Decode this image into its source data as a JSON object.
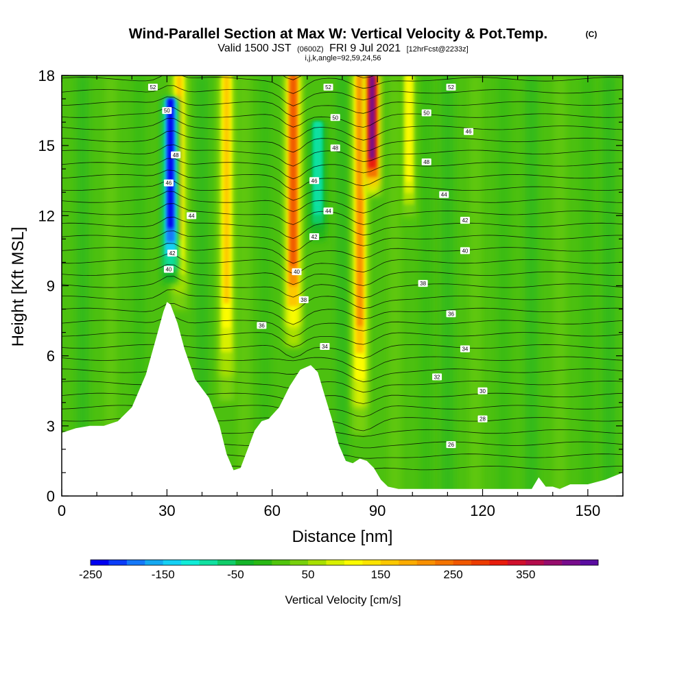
{
  "title": {
    "main": "Wind-Parallel Section at Max W: Vertical Velocity & Pot.Temp.",
    "copyright": "(C)",
    "valid_prefix": "Valid 1500 JST",
    "valid_z": "(0600Z)",
    "valid_date": "FRI 9 Jul 2021",
    "forecast": "[12hrFcst@2233z]",
    "indices": "i,j,k,angle=92,59,24,56"
  },
  "chart_data": {
    "type": "heatmap",
    "xlabel": "Distance [nm]",
    "ylabel": "Height [Kft MSL]",
    "xlim": [
      0,
      160
    ],
    "ylim": [
      0,
      18
    ],
    "x_ticks": [
      0,
      30,
      60,
      90,
      120,
      150
    ],
    "y_ticks": [
      0,
      3,
      6,
      9,
      12,
      15,
      18
    ],
    "terrain": {
      "x": [
        0,
        4,
        8,
        12,
        16,
        20,
        24,
        27,
        29,
        30,
        31,
        33,
        35,
        38,
        42,
        45,
        47,
        49,
        51,
        53,
        55,
        57,
        59,
        62,
        65,
        68,
        71,
        73,
        75,
        77,
        79,
        81,
        83,
        85,
        87,
        89,
        91,
        93,
        96,
        100,
        105,
        110,
        115,
        120,
        125,
        130,
        134,
        136,
        138,
        140,
        142,
        145,
        150,
        155,
        160
      ],
      "y_kft": [
        2.7,
        2.9,
        3.0,
        3.0,
        3.2,
        3.8,
        5.2,
        6.8,
        7.9,
        8.3,
        8.2,
        7.4,
        6.3,
        5.0,
        4.2,
        3.0,
        1.8,
        1.1,
        1.2,
        2.0,
        2.8,
        3.2,
        3.3,
        3.8,
        4.7,
        5.4,
        5.6,
        5.3,
        4.3,
        3.3,
        2.2,
        1.5,
        1.4,
        1.6,
        1.5,
        1.2,
        0.7,
        0.4,
        0.3,
        0.3,
        0.3,
        0.3,
        0.3,
        0.3,
        0.3,
        0.3,
        0.3,
        0.8,
        0.4,
        0.4,
        0.3,
        0.5,
        0.5,
        0.7,
        1.0
      ]
    },
    "updrafts": [
      {
        "x": 33.5,
        "y_base": 7.2,
        "y_top": 18,
        "peak_cm_s": 150
      },
      {
        "x": 47.0,
        "y_base": 3.0,
        "y_top": 18,
        "peak_cm_s": 150
      },
      {
        "x": 66.0,
        "y_base": 5.5,
        "y_top": 18,
        "peak_cm_s": 250
      },
      {
        "x": 85.0,
        "y_base": 1.5,
        "y_top": 18,
        "peak_cm_s": 200
      },
      {
        "x": 88.5,
        "y_base": 12.5,
        "y_top": 18,
        "peak_cm_s": 400
      },
      {
        "x": 99.0,
        "y_base": 11.0,
        "y_top": 18,
        "peak_cm_s": 100
      }
    ],
    "downdrafts": [
      {
        "x": 31.0,
        "y_base": 8.5,
        "y_top": 17.0,
        "peak_cm_s": -250
      },
      {
        "x": 73.0,
        "y_base": 10.5,
        "y_top": 16.0,
        "peak_cm_s": -100
      }
    ],
    "contour_labels": [
      {
        "text": "52",
        "x": 26,
        "y": 17.5
      },
      {
        "text": "50",
        "x": 30,
        "y": 16.5
      },
      {
        "text": "48",
        "x": 32.5,
        "y": 14.6
      },
      {
        "text": "46",
        "x": 30.5,
        "y": 13.4
      },
      {
        "text": "44",
        "x": 37,
        "y": 12.0
      },
      {
        "text": "42",
        "x": 31.5,
        "y": 10.4
      },
      {
        "text": "40",
        "x": 30.5,
        "y": 9.7
      },
      {
        "text": "36",
        "x": 57,
        "y": 7.3
      },
      {
        "text": "52",
        "x": 76,
        "y": 17.5
      },
      {
        "text": "50",
        "x": 78,
        "y": 16.2
      },
      {
        "text": "48",
        "x": 78,
        "y": 14.9
      },
      {
        "text": "46",
        "x": 72,
        "y": 13.5
      },
      {
        "text": "44",
        "x": 76,
        "y": 12.2
      },
      {
        "text": "42",
        "x": 72,
        "y": 11.1
      },
      {
        "text": "40",
        "x": 67,
        "y": 9.6
      },
      {
        "text": "38",
        "x": 69,
        "y": 8.4
      },
      {
        "text": "34",
        "x": 75,
        "y": 6.4
      },
      {
        "text": "52",
        "x": 111,
        "y": 17.5
      },
      {
        "text": "50",
        "x": 104,
        "y": 16.4
      },
      {
        "text": "46",
        "x": 116,
        "y": 15.6
      },
      {
        "text": "48",
        "x": 104,
        "y": 14.3
      },
      {
        "text": "44",
        "x": 109,
        "y": 12.9
      },
      {
        "text": "42",
        "x": 115,
        "y": 11.8
      },
      {
        "text": "40",
        "x": 115,
        "y": 10.5
      },
      {
        "text": "38",
        "x": 103,
        "y": 9.1
      },
      {
        "text": "36",
        "x": 111,
        "y": 7.8
      },
      {
        "text": "34",
        "x": 115,
        "y": 6.3
      },
      {
        "text": "32",
        "x": 107,
        "y": 5.1
      },
      {
        "text": "30",
        "x": 120,
        "y": 4.5
      },
      {
        "text": "28",
        "x": 120,
        "y": 3.3
      },
      {
        "text": "26",
        "x": 111,
        "y": 2.2
      }
    ]
  },
  "colorbar": {
    "label": "Vertical Velocity [cm/s]",
    "tick_labels": [
      "-250",
      "-150",
      "-50",
      "50",
      "150",
      "250",
      "350"
    ],
    "tick_values": [
      -250,
      -150,
      -50,
      50,
      150,
      250,
      350
    ],
    "min": -250,
    "step": 25,
    "colors": [
      "#0000f0",
      "#0a3cf8",
      "#1478f8",
      "#14a8f0",
      "#14d0f4",
      "#10ecd8",
      "#10e0a0",
      "#10cc68",
      "#14b428",
      "#28b814",
      "#50c40c",
      "#78d00c",
      "#a8e000",
      "#d8f000",
      "#fcfc00",
      "#fce400",
      "#fcc800",
      "#fcac00",
      "#f89000",
      "#f47400",
      "#f05800",
      "#ec3c00",
      "#e81c0c",
      "#d0102c",
      "#b40c4c",
      "#960c6c",
      "#780c8c",
      "#5a0ca0"
    ]
  }
}
